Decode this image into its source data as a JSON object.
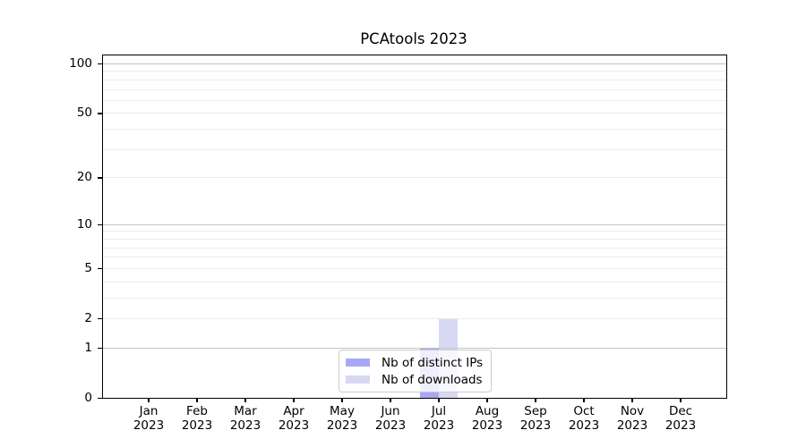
{
  "chart_data": {
    "type": "bar",
    "title": "PCAtools 2023",
    "xlabel": "",
    "ylabel": "",
    "categories": [
      "Jan 2023",
      "Feb 2023",
      "Mar 2023",
      "Apr 2023",
      "May 2023",
      "Jun 2023",
      "Jul 2023",
      "Aug 2023",
      "Sep 2023",
      "Oct 2023",
      "Nov 2023",
      "Dec 2023"
    ],
    "series": [
      {
        "name": "Nb of distinct IPs",
        "color": "#a8a8f5",
        "values": [
          0,
          0,
          0,
          0,
          0,
          0,
          1,
          0,
          0,
          0,
          0,
          0
        ]
      },
      {
        "name": "Nb of downloads",
        "color": "#d8d8f5",
        "values": [
          0,
          0,
          0,
          0,
          0,
          0,
          2,
          0,
          0,
          0,
          0,
          0
        ]
      }
    ],
    "y_axis": {
      "scale": "log1p",
      "tick_values": [
        0,
        1,
        2,
        5,
        10,
        20,
        50,
        100
      ],
      "range": [
        0,
        110
      ],
      "major_gridlines": [
        1,
        10,
        100
      ],
      "minor_gridlines": [
        2,
        3,
        4,
        5,
        6,
        7,
        8,
        9,
        20,
        30,
        40,
        50,
        60,
        70,
        80,
        90
      ],
      "grid": true
    },
    "legend": {
      "position": "bottom-center",
      "entries": [
        "Nb of distinct IPs",
        "Nb of downloads"
      ]
    },
    "colors": {
      "major_grid": "#c4c4c4",
      "minor_grid": "#ebebeb",
      "spine": "#000000",
      "background": "#ffffff"
    }
  }
}
